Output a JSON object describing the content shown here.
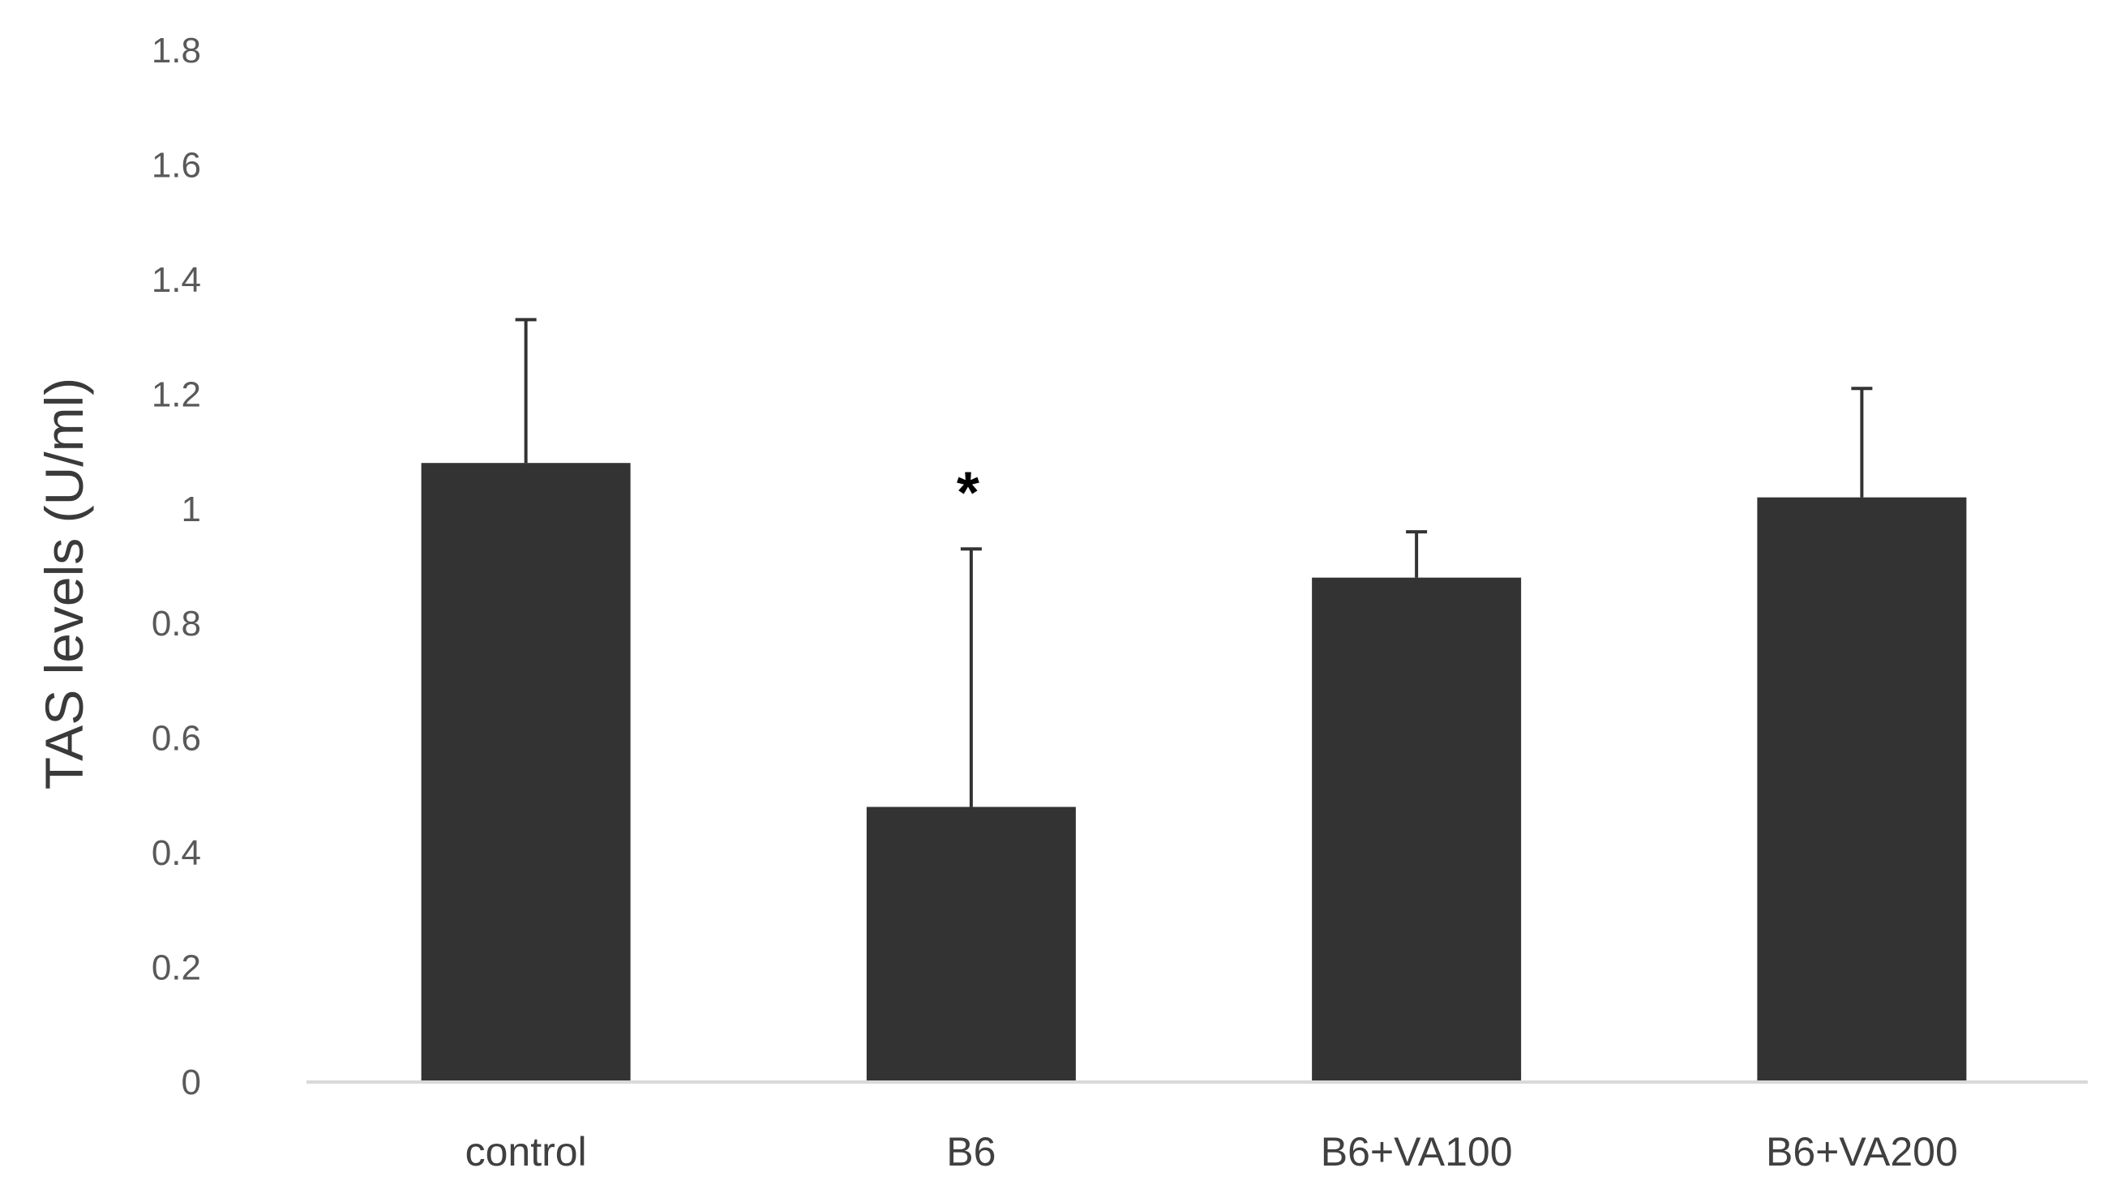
{
  "chart_data": {
    "type": "bar",
    "title": "",
    "xlabel": "",
    "ylabel": "TAS  levels (U/ml)",
    "categories": [
      "control",
      "B6",
      "B6+VA100",
      "B6+VA200"
    ],
    "values": [
      1.08,
      0.48,
      0.88,
      1.02
    ],
    "error": [
      0.25,
      0.45,
      0.08,
      0.19
    ],
    "ylim": [
      0,
      1.8
    ],
    "yticks": [
      "0",
      "0.2",
      "0.4",
      "0.6",
      "0.8",
      "1",
      "1.2",
      "1.4",
      "1.6",
      "1.8"
    ],
    "ytick_values": [
      0,
      0.2,
      0.4,
      0.6,
      0.8,
      1.0,
      1.2,
      1.4,
      1.6,
      1.8
    ],
    "annotations": [
      {
        "category": "B6",
        "text": "*"
      }
    ],
    "grid": false,
    "legend": "none",
    "colors": {
      "bar": "#333333",
      "axis": "#d9d9d9",
      "error": "#333333"
    }
  }
}
